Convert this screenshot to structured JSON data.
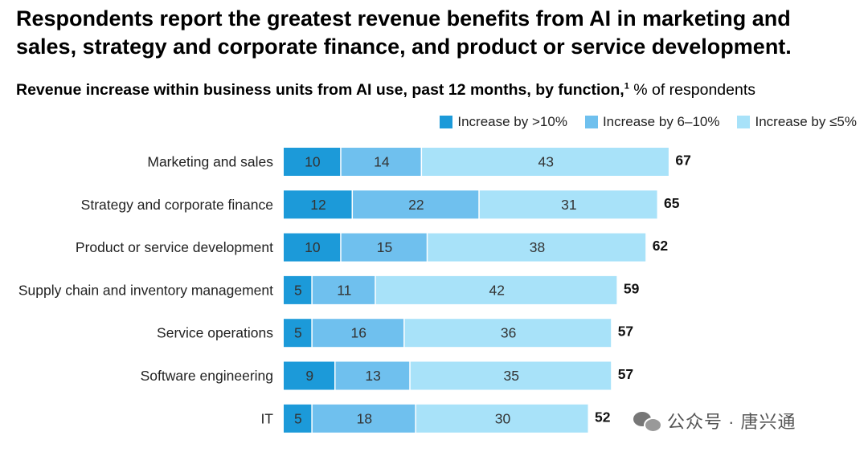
{
  "header": {
    "headline": "Respondents report the greatest revenue benefits from AI in marketing and sales, strategy and corporate finance, and product or service development.",
    "subtitle_bold": "Revenue increase within business units from AI use, past 12 months, by function,",
    "footnote_marker": "1",
    "subtitle_unit": " % of respondents"
  },
  "colors": {
    "dark": "#1c9ad9",
    "mid": "#6fc0ee",
    "light": "#a8e2f9"
  },
  "chart_data": {
    "type": "bar",
    "orientation": "horizontal",
    "stacked": true,
    "title": "Revenue increase within business units from AI use, past 12 months, by function",
    "unit": "% of respondents",
    "categories": [
      "Marketing and sales",
      "Strategy and corporate finance",
      "Product or service development",
      "Supply chain and inventory management",
      "Service operations",
      "Software engineering",
      "IT"
    ],
    "series": [
      {
        "name": "Increase by >10%",
        "values": [
          10,
          12,
          10,
          5,
          5,
          9,
          5
        ]
      },
      {
        "name": "Increase by 6–10%",
        "values": [
          14,
          22,
          15,
          11,
          16,
          13,
          18
        ]
      },
      {
        "name": "Increase by ≤5%",
        "values": [
          43,
          31,
          38,
          42,
          36,
          35,
          30
        ]
      }
    ],
    "totals": [
      67,
      65,
      62,
      59,
      57,
      57,
      52
    ],
    "legend_position": "top-right",
    "grid": false
  },
  "watermark": {
    "text": "公众号 · 唐兴通"
  }
}
